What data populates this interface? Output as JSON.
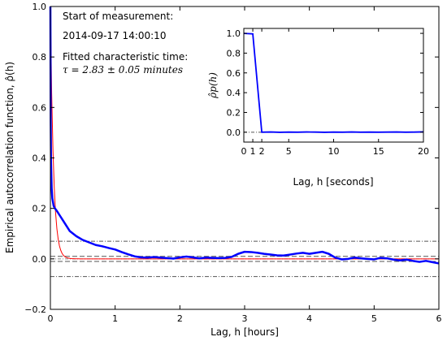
{
  "chart_data": [
    {
      "type": "line",
      "xlabel": "Lag, h [hours]",
      "ylabel": "Empirical autocorrelation function, ρ̂(h)",
      "xlim": [
        0,
        6
      ],
      "ylim": [
        -0.2,
        1.0
      ],
      "xticks": [
        "0",
        "1",
        "2",
        "3",
        "4",
        "5",
        "6"
      ],
      "yticks": [
        "−0.2",
        "0.0",
        "0.2",
        "0.4",
        "0.6",
        "0.8",
        "1.0"
      ],
      "annotations": {
        "start_label": "Start of measurement:",
        "start_value": "2014-09-17 14:00:10",
        "fit_label": "Fitted characteristic time:",
        "fit_value": "τ = 2.83 ± 0.05 minutes"
      },
      "series": [
        {
          "role": "empirical",
          "color": "#0000ff",
          "x": [
            0,
            0.005,
            0.01,
            0.02,
            0.03,
            0.05,
            0.07,
            0.1,
            0.15,
            0.2,
            0.25,
            0.3,
            0.4,
            0.5,
            0.6,
            0.7,
            0.8,
            0.9,
            1.0,
            1.1,
            1.2,
            1.3,
            1.4,
            1.5,
            1.6,
            1.7,
            1.8,
            1.9,
            2.0,
            2.1,
            2.2,
            2.3,
            2.4,
            2.5,
            2.6,
            2.7,
            2.8,
            2.9,
            3.0,
            3.1,
            3.2,
            3.3,
            3.4,
            3.5,
            3.6,
            3.7,
            3.8,
            3.9,
            4.0,
            4.1,
            4.2,
            4.3,
            4.4,
            4.5,
            4.6,
            4.7,
            4.8,
            4.9,
            5.0,
            5.1,
            5.2,
            5.3,
            5.4,
            5.5,
            5.6,
            5.7,
            5.8,
            5.9,
            6.0
          ],
          "y": [
            1.0,
            0.55,
            0.38,
            0.28,
            0.24,
            0.21,
            0.2,
            0.19,
            0.17,
            0.15,
            0.13,
            0.11,
            0.09,
            0.075,
            0.065,
            0.055,
            0.05,
            0.043,
            0.037,
            0.027,
            0.018,
            0.01,
            0.006,
            0.005,
            0.007,
            0.005,
            0.003,
            0.001,
            0.006,
            0.009,
            0.006,
            0.002,
            0.005,
            0.004,
            0.003,
            0.004,
            0.008,
            0.02,
            0.028,
            0.027,
            0.024,
            0.02,
            0.017,
            0.014,
            0.013,
            0.017,
            0.021,
            0.024,
            0.02,
            0.024,
            0.028,
            0.02,
            0.005,
            -0.002,
            0.0,
            0.005,
            0.002,
            0.0,
            -0.002,
            0.004,
            0.002,
            -0.003,
            -0.006,
            -0.003,
            -0.008,
            -0.012,
            -0.008,
            -0.013,
            -0.018
          ]
        },
        {
          "role": "fit",
          "color": "#ff0000",
          "tau_minutes": 2.83
        },
        {
          "role": "band",
          "color": "#555555",
          "values": [
            0.07,
            -0.07
          ]
        },
        {
          "role": "band-inner",
          "color": "#555555",
          "values": [
            0.01,
            -0.01
          ]
        }
      ]
    },
    {
      "type": "line",
      "xlabel": "Lag, h [seconds]",
      "ylabel": "ρ̂p(h)",
      "xlim": [
        0,
        20
      ],
      "ylim": [
        -0.1,
        1.05
      ],
      "xticks": [
        "0",
        "1",
        "2",
        "5",
        "10",
        "15",
        "20"
      ],
      "yticks": [
        "0.0",
        "0.2",
        "0.4",
        "0.6",
        "0.8",
        "1.0"
      ],
      "series": [
        {
          "role": "empirical",
          "color": "#0000ff",
          "x": [
            0,
            1,
            2,
            3,
            4,
            5,
            6,
            7,
            8,
            9,
            10,
            11,
            12,
            13,
            14,
            15,
            16,
            17,
            18,
            19,
            20
          ],
          "y": [
            1.0,
            0.995,
            0.0,
            0.002,
            -0.001,
            0.001,
            0.0,
            0.002,
            0.001,
            -0.001,
            0.001,
            0.0,
            0.002,
            0.0,
            0.001,
            0.0,
            0.001,
            0.002,
            0.0,
            0.001,
            0.003
          ]
        }
      ]
    }
  ]
}
